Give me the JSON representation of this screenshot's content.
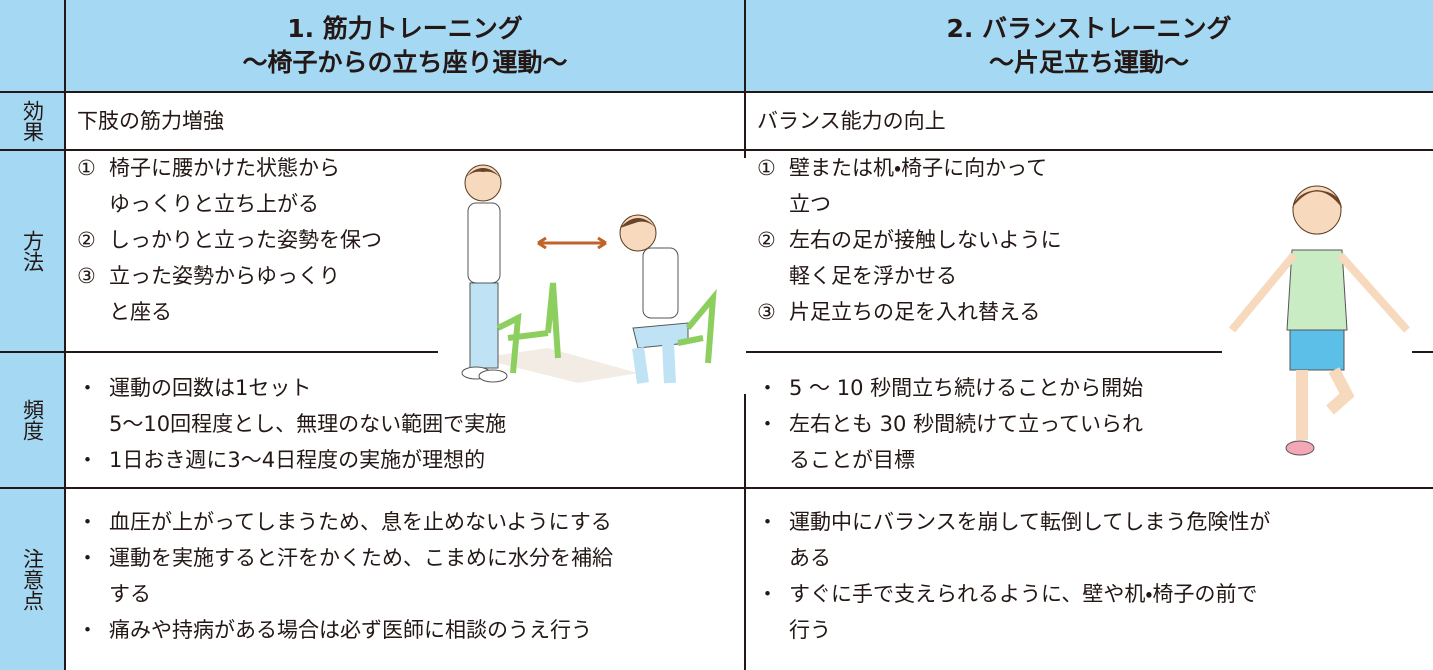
{
  "table": {
    "header": [
      [
        "1. 筋力トレーニング",
        "～椅子からの立ち座り運動～"
      ],
      [
        "2. バランストレーニング",
        "～片足立ち運動～"
      ]
    ],
    "rows": [
      {
        "label": "効果",
        "cells": [
          [
            {
              "marker": "",
              "lines": [
                "下肢の筋力増強"
              ]
            }
          ],
          [
            {
              "marker": "",
              "lines": [
                "バランス能力の向上"
              ]
            }
          ]
        ]
      },
      {
        "label": "方法",
        "cells": [
          [
            {
              "marker": "①",
              "lines": [
                "椅子に腰かけた状態から",
                "ゆっくりと立ち上がる"
              ]
            },
            {
              "marker": "②",
              "lines": [
                "しっかりと立った姿勢を保つ"
              ]
            },
            {
              "marker": "③",
              "lines": [
                "立った姿勢からゆっくり",
                "と座る"
              ]
            }
          ],
          [
            {
              "marker": "①",
              "lines": [
                "壁または机・椅子に向かって",
                "立つ"
              ]
            },
            {
              "marker": "②",
              "lines": [
                "左右の足が接触しないように",
                "軽く足を浮かせる"
              ]
            },
            {
              "marker": "③",
              "lines": [
                "片足立ちの足を入れ替える"
              ]
            }
          ]
        ]
      },
      {
        "label": "頻度",
        "cells": [
          [
            {
              "marker": "・",
              "lines": [
                "運動の回数は1セット",
                "5～10回程度とし、無理のない範囲で実施"
              ]
            },
            {
              "marker": "・",
              "lines": [
                "1日おき週に3～4日程度の実施が理想的"
              ]
            }
          ],
          [
            {
              "marker": "・",
              "lines": [
                "5 ～ 10 秒間立ち続けることから開始"
              ]
            },
            {
              "marker": "・",
              "lines": [
                "左右とも 30 秒間続けて立っていられ",
                "ることが目標"
              ]
            }
          ]
        ]
      },
      {
        "label": "注意点",
        "cells": [
          [
            {
              "marker": "・",
              "lines": [
                "血圧が上がってしまうため、息を止めないようにする"
              ]
            },
            {
              "marker": "・",
              "lines": [
                "運動を実施すると汗をかくため、こまめに水分を補給",
                "する"
              ]
            },
            {
              "marker": "・",
              "lines": [
                "痛みや持病がある場合は必ず医師に相談のうえ行う"
              ]
            }
          ],
          [
            {
              "marker": "・",
              "lines": [
                "運動中にバランスを崩して転倒してしまう危険性が",
                "ある"
              ]
            },
            {
              "marker": "・",
              "lines": [
                "すぐに手で支えられるように、壁や机・椅子の前で",
                "行う"
              ]
            }
          ]
        ]
      }
    ]
  }
}
